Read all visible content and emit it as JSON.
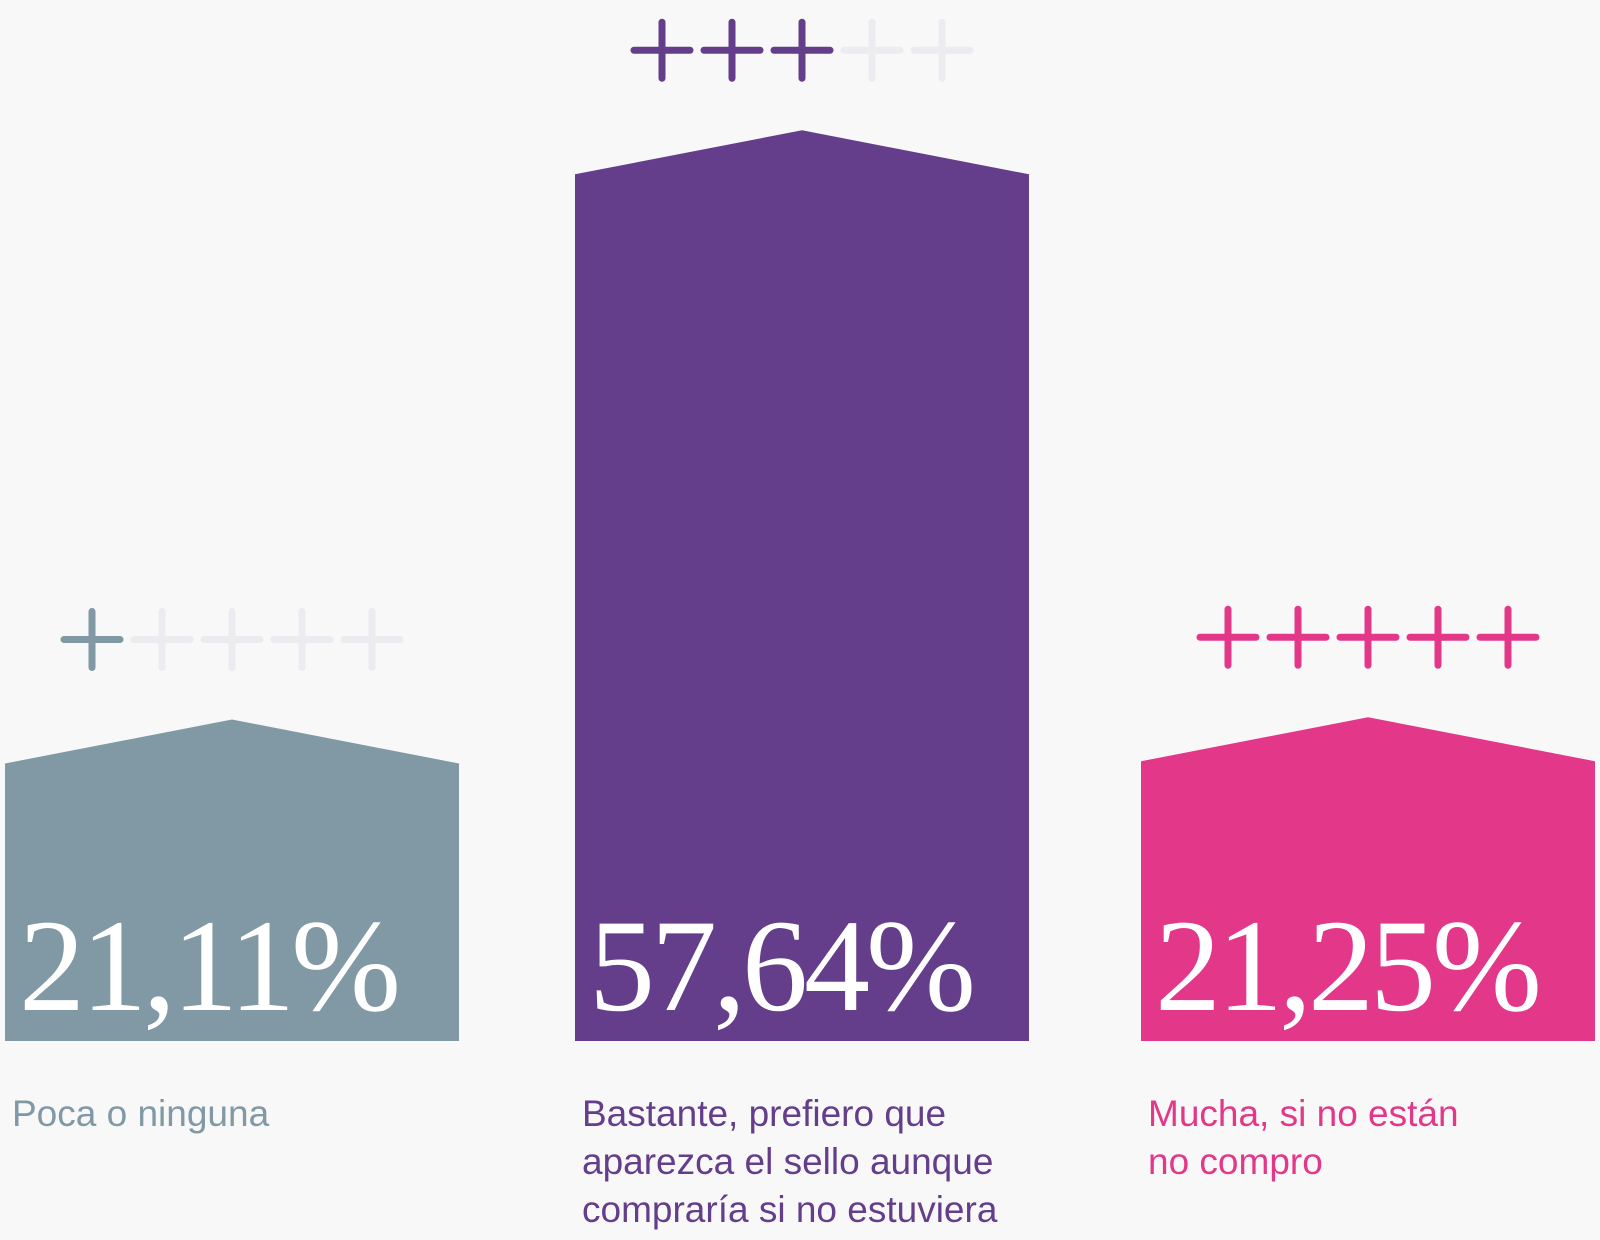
{
  "chart_data": {
    "type": "bar",
    "categories": [
      "Poca o ninguna",
      "Bastante, prefiero que aparezca el sello aunque compraría si no estuviera",
      "Mucha, si no están no compro"
    ],
    "values": [
      21.11,
      57.64,
      21.25
    ],
    "value_labels": [
      "21,11%",
      "57,64%",
      "21,25%"
    ],
    "colors": [
      "#8198a5",
      "#643e8a",
      "#e3388a"
    ],
    "ratings": [
      1,
      3,
      5
    ],
    "rating_max": 5
  }
}
